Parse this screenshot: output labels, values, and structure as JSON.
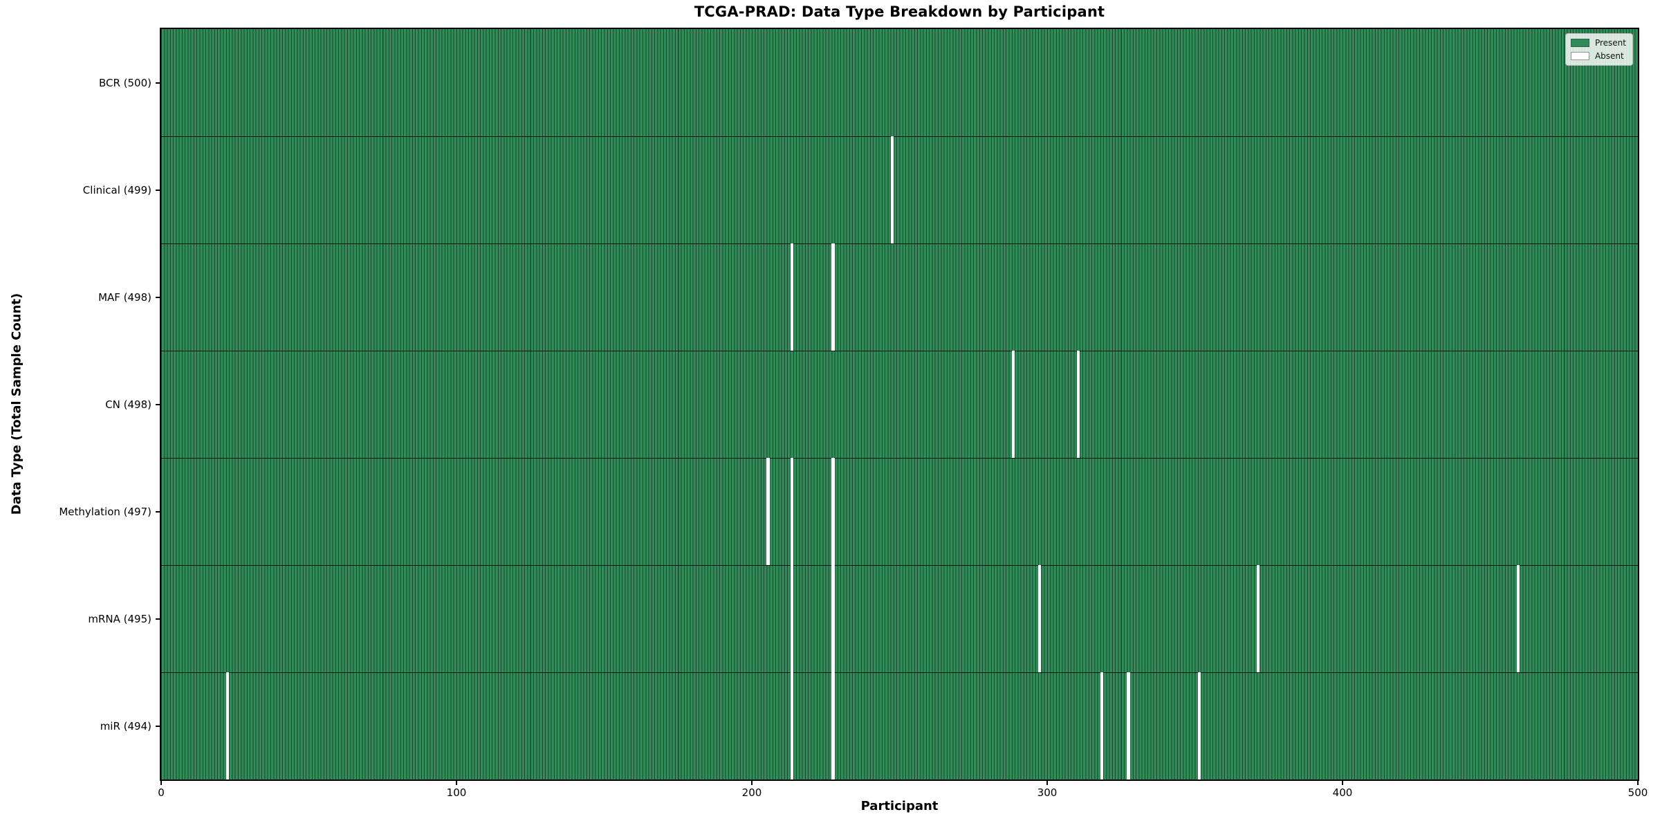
{
  "title": "TCGA-PRAD: Data Type Breakdown by Participant",
  "axes": {
    "x_label": "Participant",
    "y_label": "Data Type (Total Sample Count)"
  },
  "legend": {
    "entries": [
      {
        "label": "Present",
        "color": "#2e8b57"
      },
      {
        "label": "Absent",
        "color": "#ffffff"
      }
    ]
  },
  "colors": {
    "present": "#2e8b57",
    "absent": "#ffffff",
    "bar_edge": "rgba(0,0,0,0.5)",
    "plot_border": "#000000"
  },
  "chart_data": {
    "type": "heatmap",
    "title": "TCGA-PRAD: Data Type Breakdown by Participant",
    "xlabel": "Participant",
    "ylabel": "Data Type (Total Sample Count)",
    "x_range": [
      0,
      500
    ],
    "x_ticks": [
      0,
      100,
      200,
      300,
      400,
      500
    ],
    "n_participants": 500,
    "legend_position": "upper right",
    "grid": false,
    "cell_states": {
      "present": 1,
      "absent": 0
    },
    "rows": [
      {
        "label": "BCR (500)",
        "data_type": "BCR",
        "total": 500,
        "absent_participants": []
      },
      {
        "label": "Clinical (499)",
        "data_type": "Clinical",
        "total": 499,
        "absent_participants": [
          247
        ]
      },
      {
        "label": "MAF (498)",
        "data_type": "MAF",
        "total": 498,
        "absent_participants": [
          213,
          227
        ]
      },
      {
        "label": "CN (498)",
        "data_type": "CN",
        "total": 498,
        "absent_participants": [
          288,
          310
        ]
      },
      {
        "label": "Methylation (497)",
        "data_type": "Methylation",
        "total": 497,
        "absent_participants": [
          205,
          213,
          227
        ]
      },
      {
        "label": "mRNA (495)",
        "data_type": "mRNA",
        "total": 495,
        "absent_participants": [
          213,
          227,
          297,
          371,
          459
        ]
      },
      {
        "label": "miR (494)",
        "data_type": "miR",
        "total": 494,
        "absent_participants": [
          22,
          213,
          227,
          318,
          327,
          351
        ]
      }
    ]
  }
}
